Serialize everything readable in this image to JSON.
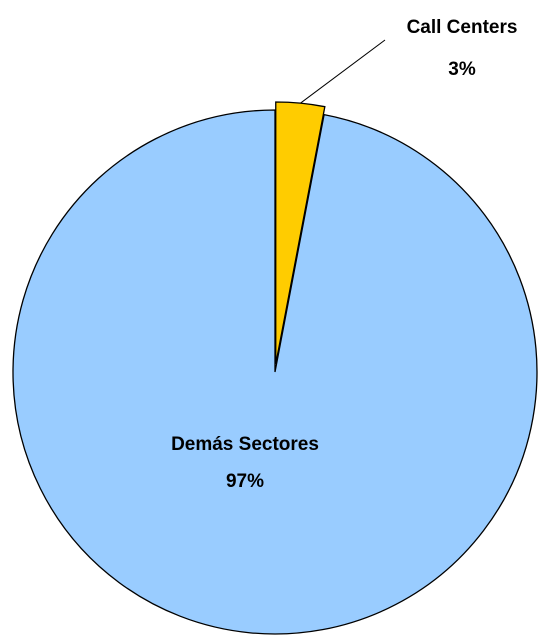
{
  "chart_data": {
    "type": "pie",
    "title": "",
    "legend": "none",
    "slices": [
      {
        "label": "Call Centers",
        "value": 3,
        "display": "3%",
        "color": "#FFCC00",
        "exploded": true
      },
      {
        "label": "Demás Sectores",
        "value": 97,
        "display": "97%",
        "color": "#99CCFF",
        "exploded": false
      }
    ]
  }
}
